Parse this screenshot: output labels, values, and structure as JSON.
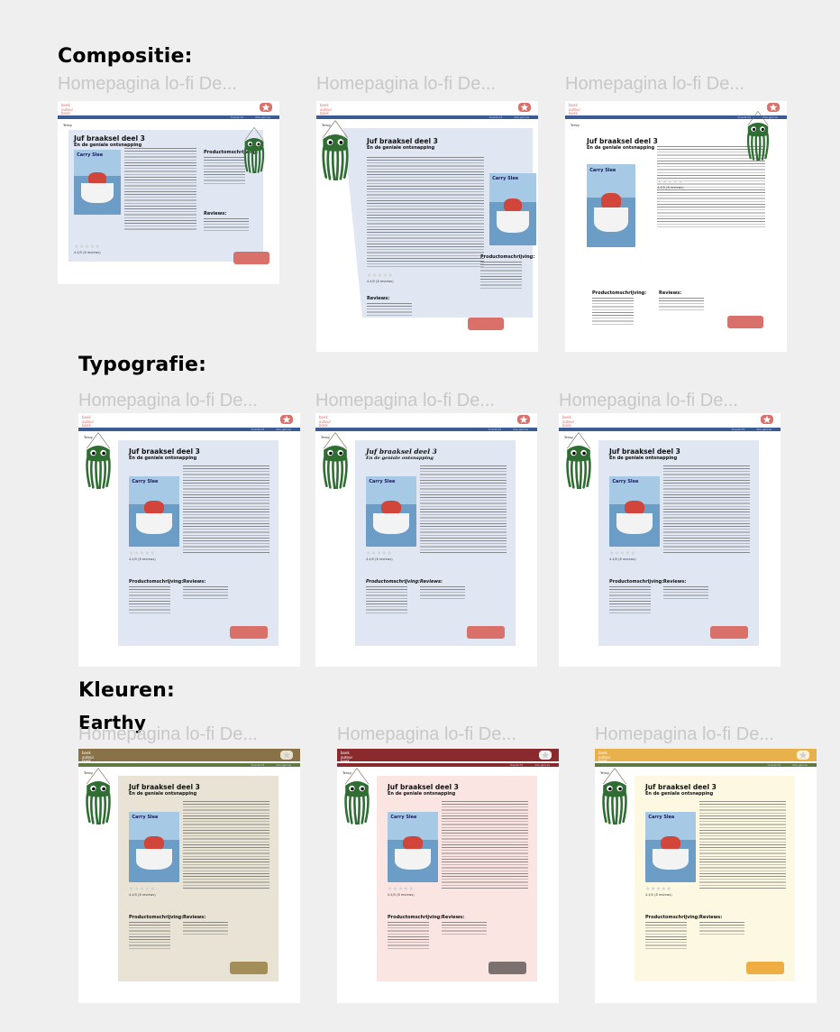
{
  "sections": [
    {
      "heading": "Compositie:"
    },
    {
      "heading": "Typografie:"
    },
    {
      "heading": "Kleuren:",
      "subheading": "Earthy"
    }
  ],
  "frame_title": "Homepagina lo-fi De...",
  "mockup": {
    "nav_items": [
      "boek",
      "auteur",
      "boek"
    ],
    "bar_links": [
      "Overzicht",
      "Alle genres"
    ],
    "back_label": "Terug",
    "book_title": "Juf braaksel deel 3",
    "book_subtitle": "En de geniale ontsnapping",
    "cover_title": "Carry Slee",
    "rating_text": "4.4/5 (8 reviews)",
    "product_heading": "Productomschrijving:",
    "reviews_heading": "Reviews:"
  },
  "colors": {
    "blue_theme_bar": "#3b5b94",
    "blue_theme_card": "#e0e7f2",
    "button_red": "#d9706a",
    "earthy_bar": "#8a7248",
    "earthy_bar2": "#5e7a3e",
    "earthy_card": "#e8e3d4",
    "earthy_button": "#a48e58",
    "red_bar": "#8a2a2c",
    "red_card": "#fbe5e3",
    "red_button": "#7c716e",
    "yellow_bar": "#e9b14b",
    "yellow_bar2": "#5e7a3e",
    "yellow_card": "#fdf8e1",
    "yellow_button": "#f0ad42",
    "octopus_green": "#2f6d33"
  }
}
